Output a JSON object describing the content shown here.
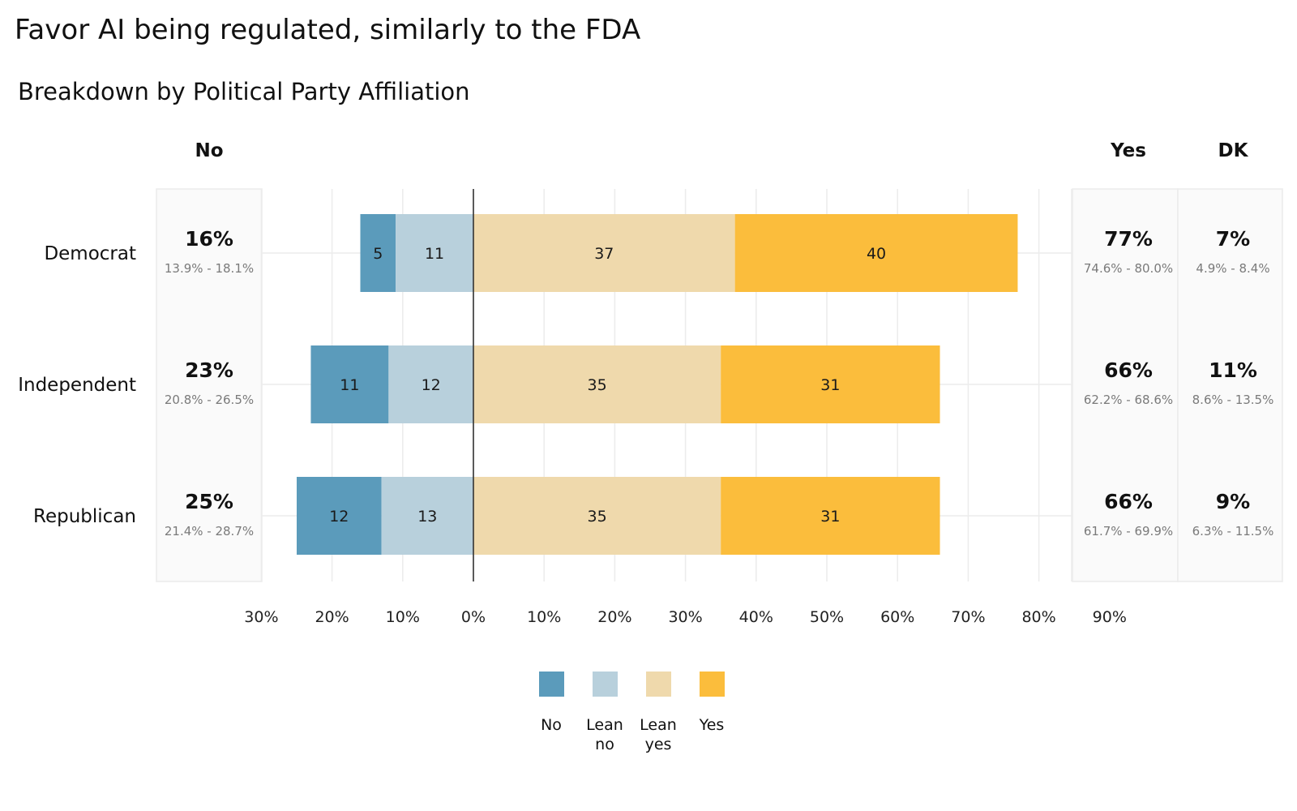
{
  "title": "Favor AI being regulated, similarly to the FDA",
  "subtitle": "Breakdown by Political Party Affiliation",
  "columns": {
    "no": "No",
    "yes": "Yes",
    "dk": "DK"
  },
  "colors": {
    "No": "#5b9bbb",
    "Lean no": "#b8d0dc",
    "Lean yes": "#efd9ac",
    "Yes": "#fbbd3c"
  },
  "chart_data": {
    "type": "bar",
    "orientation": "horizontal",
    "stacking": "diverging",
    "categories": [
      "Democrat",
      "Independent",
      "Republican"
    ],
    "series": [
      {
        "name": "No",
        "values": [
          5,
          11,
          12
        ]
      },
      {
        "name": "Lean no",
        "values": [
          11,
          12,
          13
        ]
      },
      {
        "name": "Lean yes",
        "values": [
          37,
          35,
          35
        ]
      },
      {
        "name": "Yes",
        "values": [
          40,
          31,
          31
        ]
      }
    ],
    "summary": {
      "no": {
        "values": [
          "16%",
          "23%",
          "25%"
        ],
        "ci": [
          "13.9% - 18.1%",
          "20.8% - 26.5%",
          "21.4% - 28.7%"
        ]
      },
      "yes": {
        "values": [
          "77%",
          "66%",
          "66%"
        ],
        "ci": [
          "74.6% - 80.0%",
          "62.2% - 68.6%",
          "61.7% - 69.9%"
        ]
      },
      "dk": {
        "values": [
          "7%",
          "11%",
          "9%"
        ],
        "ci": [
          "4.9% - 8.4%",
          "8.6% - 13.5%",
          "6.3% - 11.5%"
        ]
      }
    },
    "x_ticks": [
      "30%",
      "20%",
      "10%",
      "0%",
      "10%",
      "20%",
      "30%",
      "40%",
      "50%",
      "60%",
      "70%",
      "80%",
      "90%"
    ],
    "xlim": [
      -30,
      90
    ],
    "legend": {
      "position": "bottom",
      "labels": [
        [
          "No"
        ],
        [
          "Lean",
          "no"
        ],
        [
          "Lean",
          "yes"
        ],
        [
          "Yes"
        ]
      ]
    },
    "grid": true
  }
}
